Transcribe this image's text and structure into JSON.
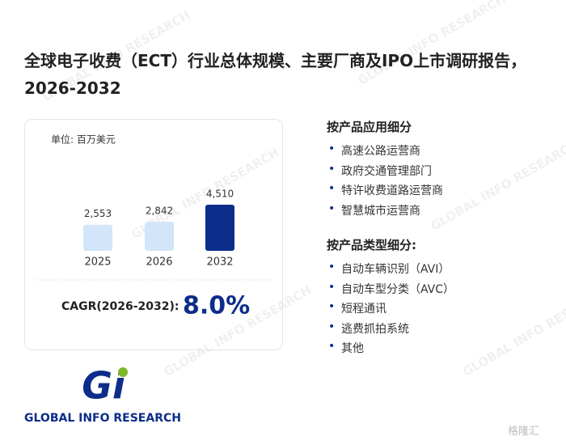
{
  "title": "全球电子收费（ECT）行业总体规模、主要厂商及IPO上市调研报告，2026-2032",
  "chart_data": {
    "type": "bar",
    "unit_label": "单位: 百万美元",
    "categories": [
      "2025",
      "2026",
      "2032"
    ],
    "values": [
      2553,
      2842,
      4510
    ],
    "value_labels": [
      "2,553",
      "2,842",
      "4,510"
    ],
    "colors": [
      "#d3e5f8",
      "#d3e5f8",
      "#0c2d8a"
    ]
  },
  "cagr": {
    "label": "CAGR(2026-2032):",
    "value": "8.0%"
  },
  "sections": [
    {
      "heading": "按产品应用细分",
      "items": [
        "高速公路运营商",
        "政府交通管理部门",
        "特许收费道路运营商",
        "智慧城市运营商"
      ]
    },
    {
      "heading": "按产品类型细分:",
      "items": [
        "自动车辆识别（AVI）",
        "自动车型分类（AVC）",
        "短程通讯",
        "逃费抓拍系统",
        "其他"
      ]
    }
  ],
  "logo": {
    "mark": "Gi",
    "text": "GLOBAL INFO RESEARCH"
  },
  "watermark": "GLOBAL INFO RESEARCH",
  "badge": "格隆汇"
}
